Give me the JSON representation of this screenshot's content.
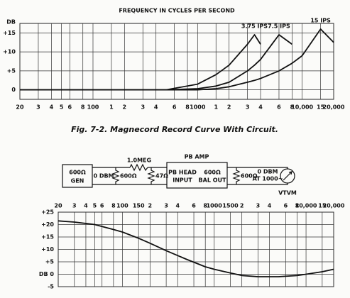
{
  "chart_data": [
    {
      "type": "line",
      "title": "FREQUENCY IN CYCLES PER SECOND",
      "y_label": "DB",
      "xscale": "log",
      "xtick_side": "bottom",
      "grid": true,
      "xlim": [
        20,
        20000
      ],
      "xticks": [
        20,
        {
          "value": 30,
          "label": "3"
        },
        {
          "value": 40,
          "label": "4"
        },
        {
          "value": 50,
          "label": "5"
        },
        {
          "value": 60,
          "label": "6"
        },
        {
          "value": 80,
          "label": "8"
        },
        100,
        {
          "value": 150,
          "label": "1"
        },
        {
          "value": 200,
          "label": "2"
        },
        {
          "value": 300,
          "label": "3"
        },
        {
          "value": 400,
          "label": "4"
        },
        {
          "value": 600,
          "label": "6"
        },
        {
          "value": 800,
          "label": "8"
        },
        1000,
        {
          "value": 1500,
          "label": "1"
        },
        {
          "value": 2000,
          "label": "2"
        },
        {
          "value": 3000,
          "label": "3"
        },
        {
          "value": 4000,
          "label": "4"
        },
        {
          "value": 6000,
          "label": "6"
        },
        {
          "value": 8000,
          "label": "8"
        },
        {
          "value": 10000,
          "label": "10,000"
        },
        {
          "value": 15000,
          "label": "15"
        },
        {
          "value": 20000,
          "label": "20,000"
        }
      ],
      "ylim": [
        -2.5,
        17.5
      ],
      "yticks": [
        0,
        {
          "value": 5,
          "label": "+5"
        },
        {
          "value": 10,
          "label": "+10"
        },
        {
          "value": 15,
          "label": "+15"
        }
      ],
      "x": [
        20,
        500,
        1000,
        1500,
        2000,
        3000,
        3500,
        4000,
        6000,
        8000,
        10000,
        15000,
        20000
      ],
      "series": [
        {
          "name": "3.75 IPS",
          "color": "#111111",
          "values": [
            0,
            0,
            1.5,
            4,
            6.5,
            12,
            14.5,
            12,
            null,
            null,
            null,
            null,
            null
          ]
        },
        {
          "name": "7.5 IPS",
          "color": "#111111",
          "values": [
            0,
            0,
            0.3,
            1,
            2,
            5,
            6.5,
            8,
            14.5,
            12,
            null,
            null,
            null
          ]
        },
        {
          "name": "15 IPS",
          "color": "#111111",
          "values": [
            0,
            0,
            0,
            0.3,
            0.8,
            2,
            2.5,
            3,
            5,
            7,
            9,
            16,
            12.5
          ]
        }
      ]
    },
    {
      "type": "line",
      "xscale": "log",
      "xtick_side": "top",
      "grid": true,
      "xlim": [
        20,
        20000
      ],
      "xticks": [
        20,
        {
          "value": 30,
          "label": "3"
        },
        {
          "value": 40,
          "label": "4"
        },
        {
          "value": 50,
          "label": "5"
        },
        {
          "value": 60,
          "label": "6"
        },
        {
          "value": 80,
          "label": "8"
        },
        100,
        150,
        {
          "value": 200,
          "label": "2"
        },
        {
          "value": 300,
          "label": "3"
        },
        {
          "value": 400,
          "label": "4"
        },
        {
          "value": 600,
          "label": "6"
        },
        {
          "value": 800,
          "label": "8"
        },
        1000,
        1500,
        {
          "value": 2000,
          "label": "2"
        },
        {
          "value": 3000,
          "label": "3"
        },
        {
          "value": 4000,
          "label": "4"
        },
        {
          "value": 6000,
          "label": "6"
        },
        {
          "value": 8000,
          "label": "8"
        },
        {
          "value": 10000,
          "label": "10,000"
        },
        {
          "value": 15000,
          "label": "15"
        },
        {
          "value": 20000,
          "label": "20,000"
        }
      ],
      "ylim": [
        -5,
        25
      ],
      "yticks": [
        -5,
        {
          "value": 0,
          "label": "DB 0"
        },
        {
          "value": 5,
          "label": "+5"
        },
        {
          "value": 10,
          "label": "+10"
        },
        {
          "value": 15,
          "label": "+15"
        },
        {
          "value": 20,
          "label": "+20"
        },
        {
          "value": 25,
          "label": "+25"
        }
      ],
      "x": [
        20,
        30,
        50,
        80,
        100,
        150,
        200,
        300,
        500,
        800,
        1000,
        1500,
        2000,
        3000,
        5000,
        8000,
        10000,
        15000,
        20000
      ],
      "series": [
        {
          "color": "#111111",
          "values": [
            21.5,
            21,
            20,
            18,
            17,
            14.5,
            12.5,
            9.5,
            6,
            3,
            2,
            0.5,
            -0.5,
            -1,
            -1,
            -0.5,
            0,
            1,
            2
          ]
        }
      ]
    }
  ],
  "caption": "Fig. 7-2. Magnecord Record Curve With Circuit.",
  "diagram": {
    "amp_label": "PB AMP",
    "generator": [
      "600Ω",
      "GEN"
    ],
    "source_level": "0 DBM",
    "source_resistor": "600Ω",
    "series_resistor": "1.0MEG",
    "shunt_resistor": "47Ω",
    "amp_input": [
      "PB HEAD",
      "INPUT"
    ],
    "amp_output": [
      "600Ω",
      "BAL OUT"
    ],
    "load_resistor": "600Ω",
    "output_level": [
      "0 DBM",
      "AT 1000~"
    ],
    "meter": "VTVM"
  }
}
